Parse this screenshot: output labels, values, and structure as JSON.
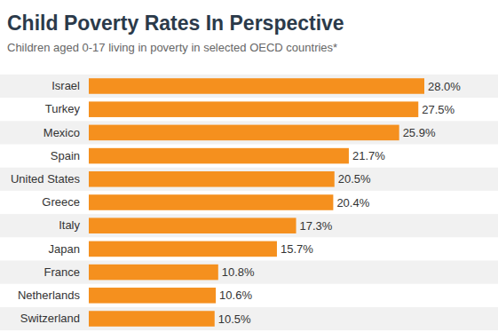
{
  "chart_data": {
    "type": "bar",
    "orientation": "horizontal",
    "title": "Child Poverty Rates In Perspective",
    "subtitle": "Children aged 0-17 living in poverty in selected OECD countries*",
    "categories": [
      "Israel",
      "Turkey",
      "Mexico",
      "Spain",
      "United States",
      "Greece",
      "Italy",
      "Japan",
      "France",
      "Netherlands",
      "Switzerland"
    ],
    "values": [
      28.0,
      27.5,
      25.9,
      21.7,
      20.5,
      20.4,
      17.3,
      15.7,
      10.8,
      10.6,
      10.5
    ],
    "value_labels": [
      "28.0%",
      "27.5%",
      "25.9%",
      "21.7%",
      "20.5%",
      "20.4%",
      "17.3%",
      "15.7%",
      "10.8%",
      "10.6%",
      "10.5%"
    ],
    "color": "#f5901e",
    "xlim": [
      0,
      30
    ],
    "data_labels": true,
    "tick_labels": "y"
  }
}
